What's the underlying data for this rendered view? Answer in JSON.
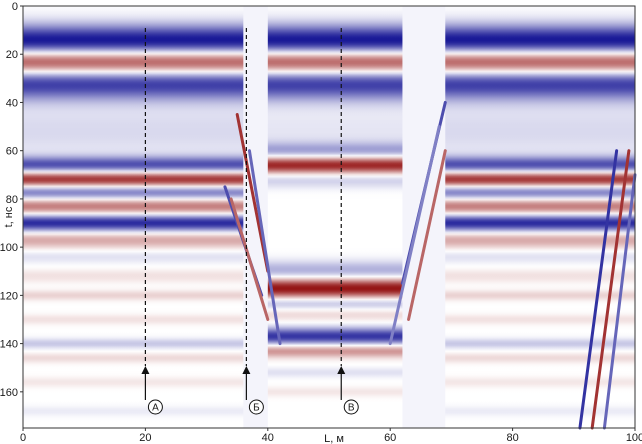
{
  "chart_data": {
    "type": "heatmap",
    "title": "",
    "xlabel": "L, м",
    "ylabel": "t, нс",
    "xlim": [
      0,
      100
    ],
    "ylim": [
      0,
      175
    ],
    "y_inverted": true,
    "x_ticks": [
      0,
      20,
      40,
      60,
      80,
      100
    ],
    "y_ticks": [
      0,
      20,
      40,
      60,
      80,
      100,
      120,
      140,
      160
    ],
    "colormap": {
      "negative": "#00008b",
      "zero": "#ffffff",
      "positive": "#8b0000"
    },
    "segments": [
      {
        "x_range": [
          0,
          36
        ],
        "reflections": [
          {
            "t": 15,
            "amp": -1.0,
            "w": 5
          },
          {
            "t": 23,
            "amp": 1.0,
            "w": 4
          },
          {
            "t": 32,
            "amp": -0.8,
            "w": 5
          },
          {
            "t": 52,
            "amp": -0.15,
            "w": 8
          },
          {
            "t": 66,
            "amp": -0.7,
            "w": 2.5
          },
          {
            "t": 72,
            "amp": 0.9,
            "w": 2.5
          },
          {
            "t": 77,
            "amp": -0.6,
            "w": 2.5
          },
          {
            "t": 83,
            "amp": 0.55,
            "w": 2.5
          },
          {
            "t": 90,
            "amp": -0.85,
            "w": 2.5
          },
          {
            "t": 97,
            "amp": 0.35,
            "w": 2.5
          },
          {
            "t": 104,
            "amp": -0.12,
            "w": 2
          },
          {
            "t": 112,
            "amp": 0.12,
            "w": 2
          },
          {
            "t": 120,
            "amp": 0.18,
            "w": 1.5
          },
          {
            "t": 130,
            "amp": 0.12,
            "w": 1.5
          },
          {
            "t": 140,
            "amp": -0.22,
            "w": 1.5
          },
          {
            "t": 146,
            "amp": 0.15,
            "w": 1.5
          },
          {
            "t": 156,
            "amp": 0.1,
            "w": 1.5
          },
          {
            "t": 168,
            "amp": -0.08,
            "w": 1.5
          }
        ]
      },
      {
        "x_range": [
          40,
          62
        ],
        "reflections": [
          {
            "t": 15,
            "amp": -1.0,
            "w": 5
          },
          {
            "t": 23,
            "amp": 1.0,
            "w": 4
          },
          {
            "t": 32,
            "amp": -0.8,
            "w": 5
          },
          {
            "t": 52,
            "amp": -0.1,
            "w": 8
          },
          {
            "t": 60,
            "amp": -0.35,
            "w": 2.5
          },
          {
            "t": 66,
            "amp": 0.9,
            "w": 2.5
          },
          {
            "t": 72,
            "amp": -0.2,
            "w": 2.5
          },
          {
            "t": 110,
            "amp": -0.35,
            "w": 3
          },
          {
            "t": 117,
            "amp": 0.95,
            "w": 3
          },
          {
            "t": 123,
            "amp": -0.3,
            "w": 2
          },
          {
            "t": 128,
            "amp": 0.15,
            "w": 2
          },
          {
            "t": 137,
            "amp": -0.8,
            "w": 2.5
          },
          {
            "t": 143,
            "amp": 0.45,
            "w": 2
          },
          {
            "t": 152,
            "amp": -0.12,
            "w": 1.5
          },
          {
            "t": 160,
            "amp": 0.1,
            "w": 1.5
          }
        ]
      },
      {
        "x_range": [
          69,
          100
        ],
        "reflections": [
          {
            "t": 15,
            "amp": -1.0,
            "w": 5
          },
          {
            "t": 23,
            "amp": 1.0,
            "w": 4
          },
          {
            "t": 32,
            "amp": -0.8,
            "w": 5
          },
          {
            "t": 52,
            "amp": -0.15,
            "w": 8
          },
          {
            "t": 66,
            "amp": -0.7,
            "w": 2.5
          },
          {
            "t": 72,
            "amp": 0.9,
            "w": 2.5
          },
          {
            "t": 77,
            "amp": -0.6,
            "w": 2.5
          },
          {
            "t": 83,
            "amp": 0.55,
            "w": 2.5
          },
          {
            "t": 90,
            "amp": -0.85,
            "w": 2.5
          },
          {
            "t": 97,
            "amp": 0.35,
            "w": 2.5
          },
          {
            "t": 104,
            "amp": -0.12,
            "w": 2
          },
          {
            "t": 112,
            "amp": 0.12,
            "w": 2
          },
          {
            "t": 120,
            "amp": 0.18,
            "w": 1.5
          },
          {
            "t": 130,
            "amp": 0.12,
            "w": 1.5
          },
          {
            "t": 140,
            "amp": -0.22,
            "w": 1.5
          },
          {
            "t": 146,
            "amp": 0.15,
            "w": 1.5
          },
          {
            "t": 156,
            "amp": 0.1,
            "w": 1.5
          },
          {
            "t": 168,
            "amp": -0.08,
            "w": 1.5
          }
        ]
      }
    ],
    "diffraction_streaks": [
      {
        "from": [
          35,
          45
        ],
        "to": [
          40,
          110
        ],
        "amp": 0.8
      },
      {
        "from": [
          37,
          60
        ],
        "to": [
          42,
          140
        ],
        "amp": -0.6
      },
      {
        "from": [
          33,
          75
        ],
        "to": [
          39,
          120
        ],
        "amp": -0.7
      },
      {
        "from": [
          34,
          80
        ],
        "to": [
          40,
          130
        ],
        "amp": 0.6
      },
      {
        "from": [
          62,
          115
        ],
        "to": [
          69,
          40
        ],
        "amp": -0.7
      },
      {
        "from": [
          63,
          130
        ],
        "to": [
          69,
          60
        ],
        "amp": 0.6
      },
      {
        "from": [
          60,
          140
        ],
        "to": [
          68,
          50
        ],
        "amp": -0.5
      },
      {
        "from": [
          97,
          60
        ],
        "to": [
          91,
          175
        ],
        "amp": -0.8
      },
      {
        "from": [
          99,
          60
        ],
        "to": [
          93,
          175
        ],
        "amp": 0.8
      },
      {
        "from": [
          100,
          70
        ],
        "to": [
          95,
          175
        ],
        "amp": -0.6
      }
    ],
    "profile_lines": [
      {
        "x": 20,
        "label": "А"
      },
      {
        "x": 36.5,
        "label": "Б"
      },
      {
        "x": 52,
        "label": "В"
      }
    ]
  }
}
